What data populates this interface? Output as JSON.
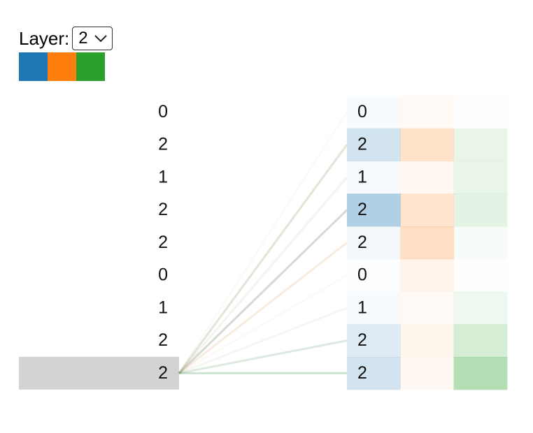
{
  "layer_control": {
    "label": "Layer:",
    "selected": "2"
  },
  "heads": [
    {
      "color": "#1f77b4"
    },
    {
      "color": "#ff7f0e"
    },
    {
      "color": "#2ca02c"
    }
  ],
  "left_tokens": [
    "0",
    "2",
    "1",
    "2",
    "2",
    "0",
    "1",
    "2",
    "2"
  ],
  "right_tokens": [
    "0",
    "2",
    "1",
    "2",
    "2",
    "0",
    "1",
    "2",
    "2"
  ],
  "selected_left_index": 8,
  "attention": [
    [
      0.03,
      0.04,
      0.01
    ],
    [
      0.2,
      0.22,
      0.1
    ],
    [
      0.04,
      0.05,
      0.1
    ],
    [
      0.35,
      0.2,
      0.12
    ],
    [
      0.05,
      0.25,
      0.03
    ],
    [
      0.01,
      0.08,
      0.01
    ],
    [
      0.03,
      0.04,
      0.08
    ],
    [
      0.15,
      0.07,
      0.2
    ],
    [
      0.2,
      0.05,
      0.35
    ]
  ]
}
